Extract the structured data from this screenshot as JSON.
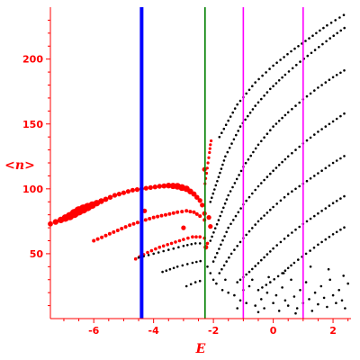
{
  "chart_data": {
    "type": "scatter",
    "title": "",
    "xlabel": "E",
    "ylabel": "<n>",
    "xlim": [
      -7.45,
      2.6
    ],
    "ylim": [
      0,
      240
    ],
    "x_ticks": [
      -6,
      -4,
      -2,
      0,
      2
    ],
    "y_ticks": [
      50,
      100,
      150,
      200
    ],
    "grid": false,
    "axis_color": "#ff0000",
    "vertical_lines": [
      {
        "name": "blue-line",
        "x": -4.4,
        "color": "#0000ff",
        "width": 4
      },
      {
        "name": "green-line",
        "x": -2.28,
        "color": "#008000",
        "width": 1.6
      },
      {
        "name": "magenta-line-left",
        "x": -1.0,
        "color": "#ff00ff",
        "width": 1.6
      },
      {
        "name": "magenta-line-right",
        "x": 1.0,
        "color": "#ff00ff",
        "width": 1.6
      }
    ],
    "series": [
      {
        "kind": "curve",
        "color": "#ff0000",
        "size": 2.6,
        "bulge": true,
        "points": [
          [
            -7.45,
            73
          ],
          [
            -7.1,
            76
          ],
          [
            -6.8,
            79
          ],
          [
            -6.5,
            83
          ],
          [
            -6.2,
            86
          ],
          [
            -5.9,
            89
          ],
          [
            -5.6,
            92
          ],
          [
            -5.3,
            95
          ],
          [
            -5.0,
            97
          ],
          [
            -4.7,
            99
          ],
          [
            -4.4,
            100
          ],
          [
            -4.1,
            101
          ],
          [
            -3.8,
            102
          ],
          [
            -3.5,
            102.5
          ],
          [
            -3.2,
            102
          ],
          [
            -2.9,
            100
          ],
          [
            -2.65,
            96
          ],
          [
            -2.45,
            91
          ],
          [
            -2.3,
            84
          ]
        ]
      },
      {
        "kind": "curve",
        "color": "#ff0000",
        "size": 2.0,
        "points": [
          [
            -6.0,
            60
          ],
          [
            -5.6,
            64
          ],
          [
            -5.2,
            68
          ],
          [
            -4.8,
            72
          ],
          [
            -4.4,
            75
          ],
          [
            -4.0,
            78
          ],
          [
            -3.6,
            80
          ],
          [
            -3.2,
            82
          ],
          [
            -2.9,
            83
          ],
          [
            -2.65,
            82
          ],
          [
            -2.45,
            79
          ],
          [
            -2.3,
            76
          ],
          [
            -2.2,
            72
          ]
        ]
      },
      {
        "kind": "curve",
        "color": "#ff0000",
        "size": 1.8,
        "points": [
          [
            -4.6,
            46
          ],
          [
            -4.2,
            51
          ],
          [
            -3.8,
            55
          ],
          [
            -3.4,
            58
          ],
          [
            -3.0,
            61
          ],
          [
            -2.7,
            63
          ],
          [
            -2.45,
            63
          ],
          [
            -2.3,
            62
          ],
          [
            -2.2,
            58
          ],
          [
            -2.15,
            54
          ]
        ]
      },
      {
        "kind": "curve",
        "color": "#ff0000",
        "size": 1.6,
        "points": [
          [
            -2.28,
            104
          ],
          [
            -2.23,
            112
          ],
          [
            -2.18,
            120
          ],
          [
            -2.13,
            128
          ],
          [
            -2.1,
            134
          ],
          [
            -2.05,
            140
          ]
        ]
      },
      {
        "kind": "curve",
        "color": "#000000",
        "size": 1.3,
        "points": [
          [
            -2.1,
            60
          ],
          [
            -1.5,
            95
          ],
          [
            -1.0,
            117
          ],
          [
            -0.5,
            134
          ],
          [
            0.0,
            148
          ],
          [
            0.5,
            159
          ],
          [
            1.0,
            169
          ],
          [
            1.5,
            178
          ],
          [
            2.0,
            186
          ],
          [
            2.5,
            193
          ]
        ]
      },
      {
        "kind": "curve",
        "color": "#000000",
        "size": 1.3,
        "points": [
          [
            -2.1,
            90
          ],
          [
            -1.6,
            125
          ],
          [
            -1.1,
            148
          ],
          [
            -0.6,
            164
          ],
          [
            -0.1,
            177
          ],
          [
            0.4,
            188
          ],
          [
            0.9,
            198
          ],
          [
            1.4,
            207
          ],
          [
            1.9,
            216
          ],
          [
            2.5,
            226
          ]
        ]
      },
      {
        "kind": "curve",
        "color": "#000000",
        "size": 1.3,
        "points": [
          [
            -1.8,
            140
          ],
          [
            -1.2,
            165
          ],
          [
            -0.6,
            182
          ],
          [
            0.0,
            195
          ],
          [
            0.6,
            206
          ],
          [
            1.2,
            216
          ],
          [
            1.8,
            226
          ],
          [
            2.5,
            236
          ]
        ]
      },
      {
        "kind": "curve",
        "color": "#000000",
        "size": 1.3,
        "points": [
          [
            -2.0,
            44
          ],
          [
            -1.5,
            70
          ],
          [
            -1.0,
            88
          ],
          [
            -0.5,
            102
          ],
          [
            0.0,
            114
          ],
          [
            0.5,
            125
          ],
          [
            1.0,
            135
          ],
          [
            1.5,
            144
          ],
          [
            2.0,
            152
          ],
          [
            2.5,
            160
          ]
        ]
      },
      {
        "kind": "curve",
        "color": "#000000",
        "size": 1.3,
        "points": [
          [
            -1.8,
            35
          ],
          [
            -1.4,
            50
          ],
          [
            -1.0,
            62
          ],
          [
            -0.5,
            75
          ],
          [
            0.0,
            86
          ],
          [
            0.5,
            96
          ],
          [
            1.0,
            104
          ],
          [
            1.5,
            112
          ],
          [
            2.0,
            120
          ],
          [
            2.5,
            127
          ]
        ]
      },
      {
        "kind": "curve",
        "color": "#000000",
        "size": 1.3,
        "points": [
          [
            -1.2,
            28
          ],
          [
            -0.8,
            36
          ],
          [
            -0.4,
            45
          ],
          [
            0.0,
            54
          ],
          [
            0.5,
            64
          ],
          [
            1.0,
            73
          ],
          [
            1.5,
            81
          ],
          [
            2.0,
            89
          ],
          [
            2.5,
            96
          ]
        ]
      },
      {
        "kind": "curve",
        "color": "#000000",
        "size": 1.3,
        "points": [
          [
            -0.5,
            22
          ],
          [
            -0.1,
            28
          ],
          [
            0.3,
            35
          ],
          [
            0.7,
            43
          ],
          [
            1.1,
            50
          ],
          [
            1.5,
            57
          ],
          [
            2.0,
            65
          ],
          [
            2.5,
            72
          ]
        ]
      },
      {
        "kind": "curve",
        "color": "#000000",
        "size": 1.3,
        "points": [
          [
            -4.5,
            47
          ],
          [
            -4.0,
            50
          ],
          [
            -3.5,
            53
          ],
          [
            -3.0,
            56
          ],
          [
            -2.6,
            58
          ],
          [
            -2.3,
            58
          ]
        ]
      },
      {
        "kind": "curve",
        "color": "#000000",
        "size": 1.3,
        "points": [
          [
            -3.7,
            36
          ],
          [
            -3.2,
            40
          ],
          [
            -2.7,
            43
          ],
          [
            -2.3,
            45
          ]
        ]
      },
      {
        "kind": "curve",
        "color": "#000000",
        "size": 1.3,
        "points": [
          [
            -2.9,
            25
          ],
          [
            -2.6,
            28
          ],
          [
            -2.3,
            30
          ]
        ]
      },
      {
        "kind": "scatter",
        "color": "#000000",
        "size": 1.3,
        "points": [
          [
            -2.2,
            40
          ],
          [
            -2.1,
            35
          ],
          [
            -2.0,
            30
          ],
          [
            -1.9,
            27
          ],
          [
            -1.7,
            22
          ],
          [
            -1.5,
            20
          ],
          [
            -1.3,
            18
          ],
          [
            -1.1,
            14
          ],
          [
            -0.9,
            12
          ],
          [
            -0.8,
            25
          ],
          [
            -0.7,
            30
          ],
          [
            -0.6,
            10
          ],
          [
            -0.4,
            15
          ],
          [
            -0.3,
            8
          ],
          [
            -0.2,
            20
          ],
          [
            0.0,
            12
          ],
          [
            0.1,
            18
          ],
          [
            0.2,
            6
          ],
          [
            0.3,
            24
          ],
          [
            0.4,
            14
          ],
          [
            0.5,
            10
          ],
          [
            0.6,
            30
          ],
          [
            0.7,
            17
          ],
          [
            0.8,
            8
          ],
          [
            0.9,
            22
          ],
          [
            1.0,
            12
          ],
          [
            1.1,
            28
          ],
          [
            1.2,
            15
          ],
          [
            1.3,
            6
          ],
          [
            1.4,
            20
          ],
          [
            1.5,
            11
          ],
          [
            1.6,
            25
          ],
          [
            1.7,
            16
          ],
          [
            1.8,
            9
          ],
          [
            1.9,
            30
          ],
          [
            2.0,
            18
          ],
          [
            2.1,
            12
          ],
          [
            2.2,
            22
          ],
          [
            2.3,
            14
          ],
          [
            2.4,
            8
          ],
          [
            2.5,
            27
          ],
          [
            -1.6,
            30
          ],
          [
            -1.0,
            22
          ],
          [
            -0.5,
            5
          ],
          [
            0.35,
            35
          ],
          [
            1.25,
            40
          ],
          [
            1.85,
            38
          ],
          [
            2.35,
            33
          ],
          [
            -0.15,
            32
          ],
          [
            0.75,
            4
          ],
          [
            -1.2,
            8
          ]
        ]
      },
      {
        "kind": "scatter",
        "color": "#ff0000",
        "size": 2.6,
        "points": [
          [
            -2.3,
            115
          ],
          [
            -2.3,
            81
          ],
          [
            -2.15,
            78
          ],
          [
            -2.1,
            71
          ],
          [
            -2.25,
            55
          ],
          [
            -4.3,
            83
          ],
          [
            -3.0,
            70
          ]
        ]
      }
    ]
  }
}
